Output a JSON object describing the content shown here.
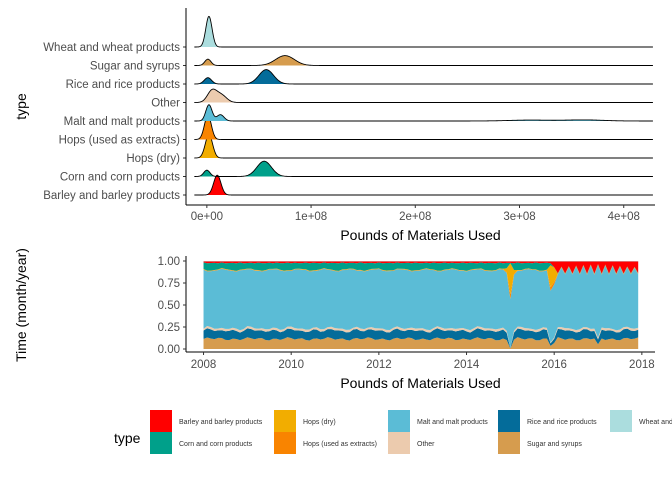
{
  "chart_data": [
    {
      "type": "ridgeline",
      "xlabel": "Pounds of Materials Used",
      "ylabel": "type",
      "xlim": [
        -20000000,
        430000000
      ],
      "x_ticks": [
        0,
        100000000,
        200000000,
        300000000,
        400000000
      ],
      "x_tick_labels": [
        "0e+00",
        "1e+08",
        "2e+08",
        "3e+08",
        "4e+08"
      ],
      "grid": false,
      "series": [
        {
          "name": "Barley and barley products",
          "color": "#FF0000",
          "peaks": [
            {
              "x": 10000000,
              "h": 1.1,
              "w": 3500000
            }
          ]
        },
        {
          "name": "Corn and corn products",
          "color": "#00A08A",
          "peaks": [
            {
              "x": 0,
              "h": 0.35,
              "w": 3000000
            },
            {
              "x": 55000000,
              "h": 0.85,
              "w": 7000000
            }
          ]
        },
        {
          "name": "Hops (dry)",
          "color": "#F2AD00",
          "peaks": [
            {
              "x": 2000000,
              "h": 1.3,
              "w": 3500000
            }
          ]
        },
        {
          "name": "Hops (used as extracts)",
          "color": "#F98400",
          "peaks": [
            {
              "x": 1000000,
              "h": 1.35,
              "w": 3300000
            }
          ]
        },
        {
          "name": "Malt and malt products",
          "color": "#5BBCD6",
          "peaks": [
            {
              "x": 2000000,
              "h": 0.9,
              "w": 3000000
            },
            {
              "x": 13000000,
              "h": 0.35,
              "w": 3500000
            },
            {
              "x": 310000000,
              "h": 0.05,
              "w": 20000000
            },
            {
              "x": 362000000,
              "h": 0.06,
              "w": 18000000
            }
          ]
        },
        {
          "name": "Other",
          "color": "#ECCBAE",
          "peaks": [
            {
              "x": 5000000,
              "h": 0.65,
              "w": 4500000
            },
            {
              "x": 14000000,
              "h": 0.4,
              "w": 5000000
            }
          ]
        },
        {
          "name": "Rice and rice products",
          "color": "#046C9A",
          "peaks": [
            {
              "x": 1000000,
              "h": 0.35,
              "w": 3500000
            },
            {
              "x": 57000000,
              "h": 0.8,
              "w": 7000000
            }
          ]
        },
        {
          "name": "Sugar and syrups",
          "color": "#D69C4E",
          "peaks": [
            {
              "x": 1000000,
              "h": 0.35,
              "w": 3000000
            },
            {
              "x": 75000000,
              "h": 0.55,
              "w": 9000000
            }
          ]
        },
        {
          "name": "Wheat and wheat products",
          "color": "#ABDDDE",
          "peaks": [
            {
              "x": 2000000,
              "h": 1.7,
              "w": 3000000
            }
          ]
        }
      ]
    },
    {
      "type": "area",
      "stacked": "fill",
      "xlabel": "Pounds of Materials Used",
      "ylabel": "Time (month/year)",
      "xlim": [
        2007.6,
        2018.3
      ],
      "ylim": [
        0,
        1
      ],
      "x_ticks": [
        2008,
        2010,
        2012,
        2014,
        2016,
        2018
      ],
      "x_tick_labels": [
        "2008",
        "2010",
        "2012",
        "2014",
        "2016",
        "2018"
      ],
      "y_ticks": [
        0,
        0.25,
        0.5,
        0.75,
        1
      ],
      "y_tick_labels": [
        "0.00",
        "0.25",
        "0.50",
        "0.75",
        "1.00"
      ],
      "grid": false,
      "x_range": [
        2008,
        2017.9
      ],
      "stack_order_bottom_to_top": [
        "Sugar and syrups",
        "Rice and rice products",
        "Other",
        "Malt and malt products",
        "Hops (used as extracts)",
        "Hops (dry)",
        "Corn and corn products",
        "Barley and barley products"
      ],
      "approx_shares": {
        "Sugar and syrups": 0.12,
        "Rice and rice products": 0.09,
        "Other": 0.02,
        "Malt and malt products": 0.67,
        "Hops (used as extracts)": 0.005,
        "Hops (dry)": 0.005,
        "Corn and corn products": 0.08,
        "Barley and barley products": 0.01,
        "Wheat and wheat products": 0.004
      },
      "events": [
        {
          "x": 2015.0,
          "note": "hops spike, other components near zero"
        },
        {
          "x": 2015.95,
          "note": "hops spike, other components near zero"
        },
        {
          "x": 2017.0,
          "note": "sugar/rice dip"
        },
        {
          "x_from": 2016.0,
          "note": "after 2016: corn and sugar near zero, barley spikes at top"
        }
      ]
    }
  ],
  "legend": {
    "title": "type",
    "position": "bottom",
    "items": [
      {
        "label": "Barley and barley products",
        "color": "#FF0000"
      },
      {
        "label": "Corn and corn products",
        "color": "#00A08A"
      },
      {
        "label": "Hops (dry)",
        "color": "#F2AD00"
      },
      {
        "label": "Hops (used as extracts)",
        "color": "#F98400"
      },
      {
        "label": "Malt and malt products",
        "color": "#5BBCD6"
      },
      {
        "label": "Other",
        "color": "#ECCBAE"
      },
      {
        "label": "Rice and rice products",
        "color": "#046C9A"
      },
      {
        "label": "Sugar and syrups",
        "color": "#D69C4E"
      },
      {
        "label": "Wheat and wheat products",
        "color": "#ABDDDE"
      }
    ]
  }
}
